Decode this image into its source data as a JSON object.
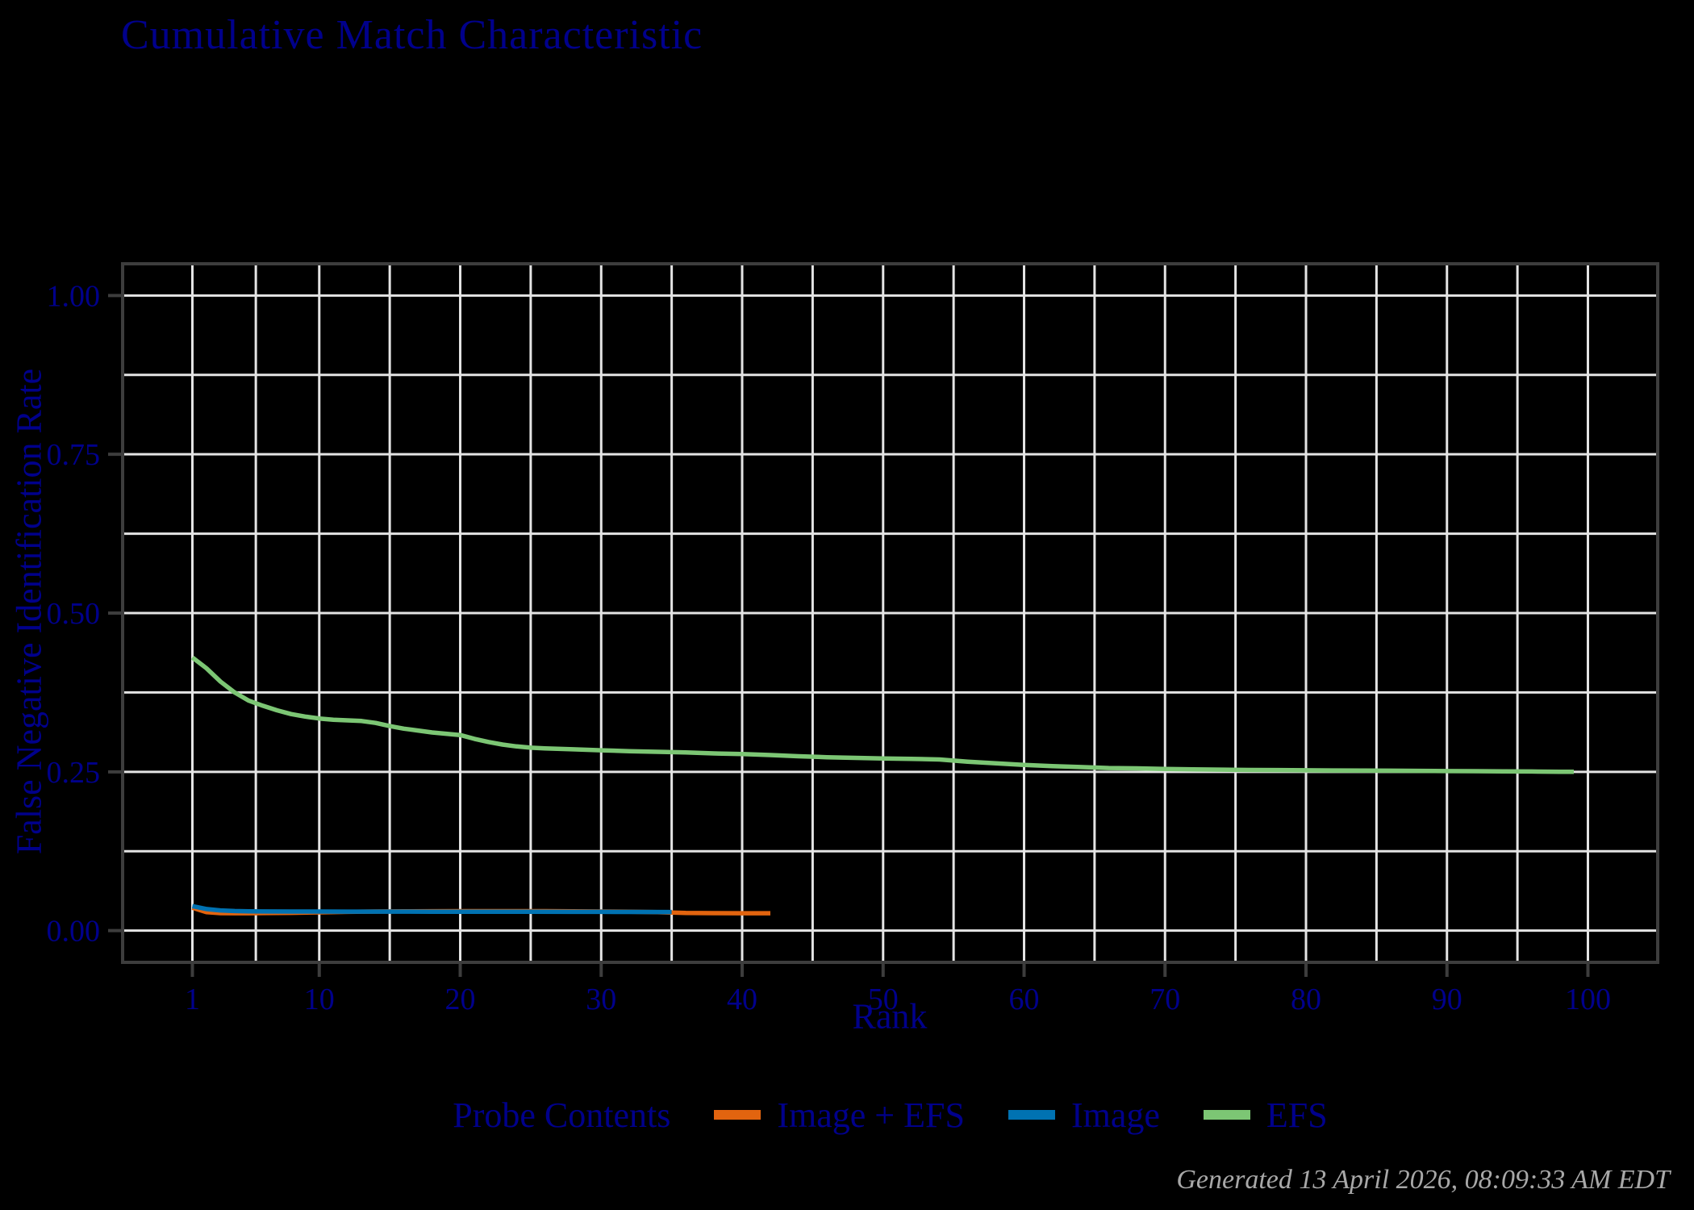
{
  "title": "Cumulative Match Characteristic",
  "footer": "Generated 13 April 2026, 08:09:33 AM EDT",
  "colors": {
    "background": "#000000",
    "text_navy": "#00008B",
    "grid": "#E4E4E4",
    "axis": "#3D3D3D",
    "tick": "#3D3D3D",
    "footer_text": "#A8A8A8"
  },
  "chart_data": {
    "type": "line",
    "title": "Cumulative Match Characteristic",
    "xlabel": "Rank",
    "ylabel": "False Negative Identification Rate",
    "xlim": [
      1,
      100
    ],
    "ylim": [
      0,
      1
    ],
    "grid": "on",
    "x_ticks": {
      "values": [
        1,
        10,
        20,
        30,
        40,
        50,
        60,
        70,
        80,
        90,
        100
      ],
      "labels": [
        "1",
        "10",
        "20",
        "30",
        "40",
        "50",
        "60",
        "70",
        "80",
        "90",
        "100"
      ]
    },
    "y_ticks": {
      "values": [
        0,
        0.25,
        0.5,
        0.75,
        1
      ],
      "labels": [
        "0.00",
        "0.25",
        "0.50",
        "0.75",
        "1.00"
      ]
    },
    "x_gridlines": [
      1,
      5.5,
      10,
      15,
      20,
      25,
      30,
      35,
      40,
      45,
      50,
      55,
      60,
      65,
      70,
      75,
      80,
      85,
      90,
      95,
      100
    ],
    "y_gridlines": [
      0,
      0.125,
      0.25,
      0.375,
      0.5,
      0.625,
      0.75,
      0.875,
      1
    ],
    "legend": {
      "title": "Probe Contents",
      "position": "bottom"
    },
    "series": [
      {
        "name": "Image + EFS",
        "color": "#E2640F",
        "points": [
          [
            1,
            0.036
          ],
          [
            2,
            0.029
          ],
          [
            3,
            0.0275
          ],
          [
            4,
            0.0273
          ],
          [
            5,
            0.0274
          ],
          [
            6,
            0.0276
          ],
          [
            8,
            0.028
          ],
          [
            10,
            0.0287
          ],
          [
            12,
            0.0295
          ],
          [
            14,
            0.03
          ],
          [
            16,
            0.0303
          ],
          [
            18,
            0.0305
          ],
          [
            20,
            0.0306
          ],
          [
            22,
            0.0307
          ],
          [
            24,
            0.0307
          ],
          [
            26,
            0.0306
          ],
          [
            28,
            0.0304
          ],
          [
            30,
            0.03
          ],
          [
            32,
            0.0296
          ],
          [
            34,
            0.029
          ],
          [
            35,
            0.0285
          ],
          [
            36,
            0.0278
          ],
          [
            38,
            0.0275
          ],
          [
            40,
            0.0274
          ],
          [
            42,
            0.0273
          ]
        ]
      },
      {
        "name": "Image",
        "color": "#0072B2",
        "points": [
          [
            1,
            0.0385
          ],
          [
            2,
            0.034
          ],
          [
            3,
            0.0318
          ],
          [
            4,
            0.0308
          ],
          [
            5,
            0.0303
          ],
          [
            6,
            0.0301
          ],
          [
            8,
            0.03
          ],
          [
            10,
            0.03
          ],
          [
            12,
            0.0299
          ],
          [
            15,
            0.0299
          ],
          [
            18,
            0.0298
          ],
          [
            20,
            0.0297
          ],
          [
            22,
            0.0297
          ],
          [
            25,
            0.0296
          ],
          [
            28,
            0.0295
          ],
          [
            30,
            0.0295
          ],
          [
            32,
            0.0294
          ],
          [
            35,
            0.0293
          ]
        ]
      },
      {
        "name": "EFS",
        "color": "#7CC674",
        "points": [
          [
            1,
            0.43
          ],
          [
            2,
            0.413
          ],
          [
            3,
            0.392
          ],
          [
            4,
            0.375
          ],
          [
            5,
            0.362
          ],
          [
            6,
            0.354
          ],
          [
            7,
            0.347
          ],
          [
            8,
            0.341
          ],
          [
            9,
            0.337
          ],
          [
            10,
            0.334
          ],
          [
            11,
            0.332
          ],
          [
            12,
            0.331
          ],
          [
            13,
            0.33
          ],
          [
            14,
            0.327
          ],
          [
            15,
            0.322
          ],
          [
            16,
            0.318
          ],
          [
            17,
            0.315
          ],
          [
            18,
            0.312
          ],
          [
            19,
            0.31
          ],
          [
            20,
            0.308
          ],
          [
            21,
            0.302
          ],
          [
            22,
            0.297
          ],
          [
            23,
            0.293
          ],
          [
            24,
            0.29
          ],
          [
            25,
            0.288
          ],
          [
            26,
            0.287
          ],
          [
            28,
            0.2855
          ],
          [
            30,
            0.284
          ],
          [
            32,
            0.2825
          ],
          [
            34,
            0.2815
          ],
          [
            36,
            0.2805
          ],
          [
            38,
            0.279
          ],
          [
            40,
            0.278
          ],
          [
            42,
            0.2765
          ],
          [
            44,
            0.2745
          ],
          [
            46,
            0.273
          ],
          [
            48,
            0.272
          ],
          [
            50,
            0.271
          ],
          [
            52,
            0.2705
          ],
          [
            54,
            0.2695
          ],
          [
            56,
            0.266
          ],
          [
            58,
            0.2635
          ],
          [
            60,
            0.261
          ],
          [
            62,
            0.259
          ],
          [
            64,
            0.2575
          ],
          [
            66,
            0.256
          ],
          [
            68,
            0.2555
          ],
          [
            70,
            0.2545
          ],
          [
            72,
            0.254
          ],
          [
            74,
            0.2535
          ],
          [
            76,
            0.253
          ],
          [
            78,
            0.2528
          ],
          [
            80,
            0.2525
          ],
          [
            82,
            0.2522
          ],
          [
            84,
            0.252
          ],
          [
            86,
            0.2518
          ],
          [
            88,
            0.2515
          ],
          [
            90,
            0.2512
          ],
          [
            92,
            0.251
          ],
          [
            94,
            0.2508
          ],
          [
            96,
            0.2505
          ],
          [
            98,
            0.2502
          ],
          [
            99,
            0.25
          ]
        ]
      }
    ]
  }
}
